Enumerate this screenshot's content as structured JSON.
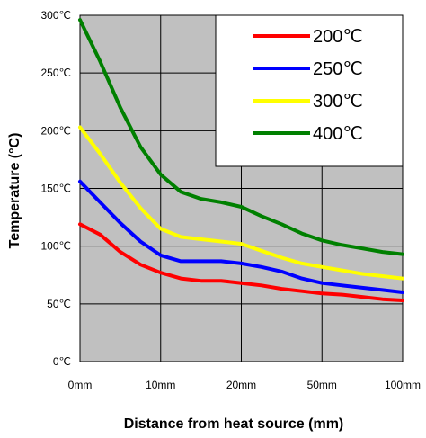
{
  "chart_data": {
    "type": "line",
    "xlabel": "Distance from heat source (mm)",
    "ylabel": "Temperature (°C)",
    "x_ticks": [
      "0mm",
      "10mm",
      "20mm",
      "50mm",
      "100mm"
    ],
    "y_ticks": [
      "0℃",
      "50℃",
      "100℃",
      "150℃",
      "200℃",
      "250℃",
      "300℃"
    ],
    "y_tick_values": [
      0,
      50,
      100,
      150,
      200,
      250,
      300
    ],
    "ylim": [
      0,
      300
    ],
    "x_positions": [
      0,
      0.5,
      1,
      1.5,
      2,
      2.5,
      3,
      3.5,
      4,
      4.5,
      5,
      5.5,
      6,
      6.5,
      7,
      7.5,
      8
    ],
    "grid": true,
    "legend_position": "top-right",
    "colors": {
      "plot_background": "#c0c0c0",
      "grid": "#000000"
    },
    "series": [
      {
        "name": "200℃",
        "color": "#ff0000",
        "values": [
          119,
          110,
          95,
          84,
          77,
          72,
          70,
          70,
          68,
          66,
          63,
          61,
          59,
          58,
          56,
          54,
          53
        ]
      },
      {
        "name": "250℃",
        "color": "#0000ff",
        "values": [
          156,
          138,
          120,
          104,
          92,
          87,
          87,
          87,
          85,
          82,
          78,
          72,
          68,
          66,
          64,
          62,
          60
        ]
      },
      {
        "name": "300℃",
        "color": "#ffff00",
        "values": [
          203,
          180,
          155,
          133,
          115,
          108,
          106,
          104,
          102,
          96,
          90,
          85,
          82,
          79,
          76,
          74,
          72
        ]
      },
      {
        "name": "400℃",
        "color": "#008000",
        "values": [
          296,
          260,
          220,
          186,
          162,
          147,
          141,
          138,
          134,
          126,
          119,
          111,
          105,
          101,
          98,
          95,
          93
        ]
      }
    ]
  }
}
